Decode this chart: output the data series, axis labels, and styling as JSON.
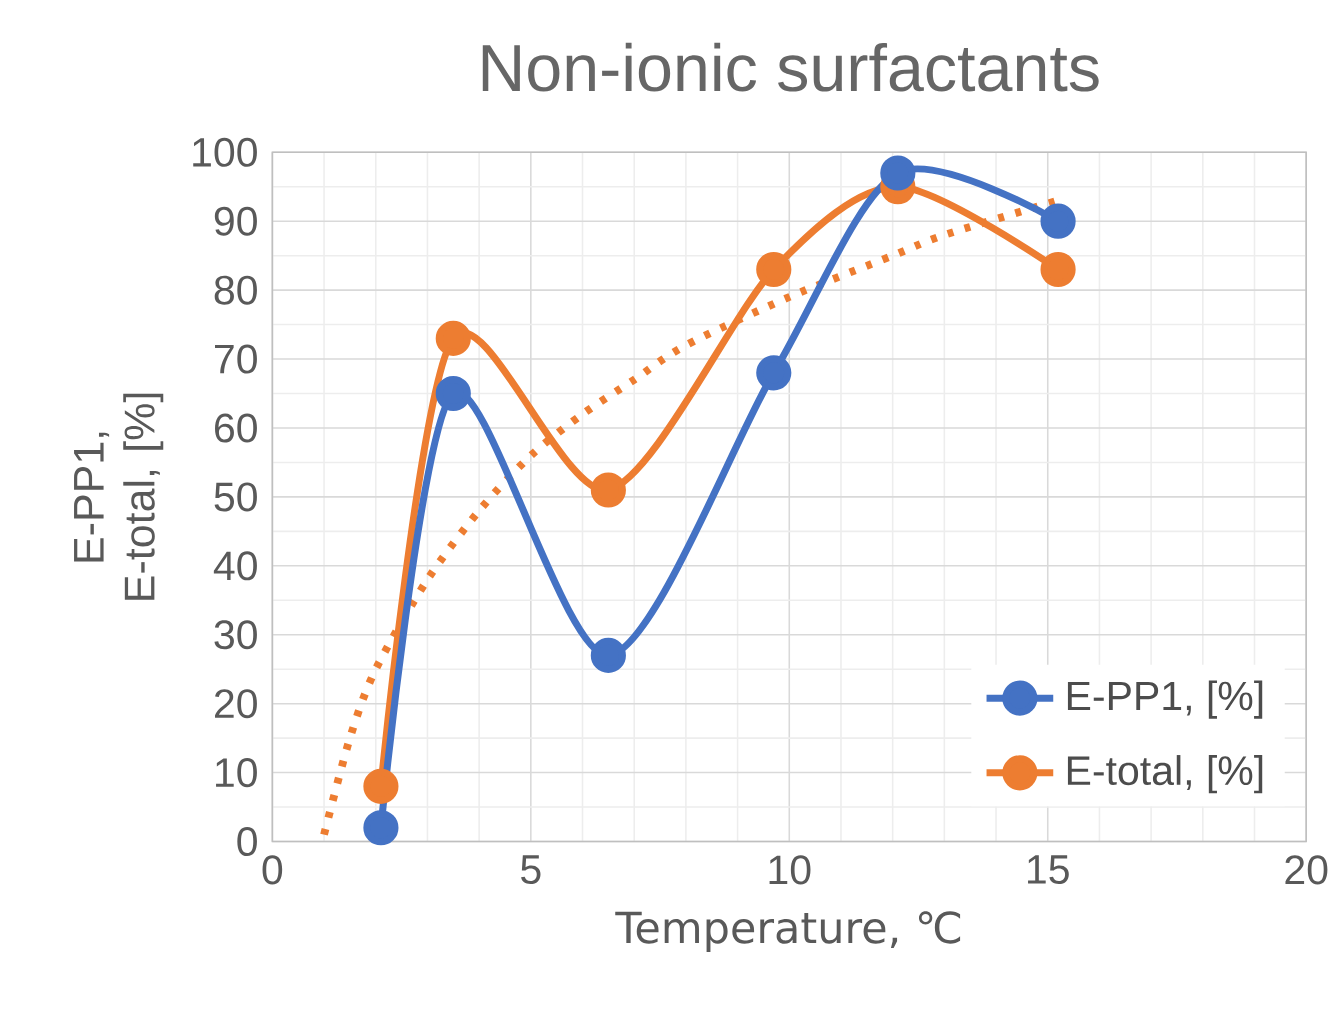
{
  "chart_data": {
    "type": "line",
    "title": "Non-ionic surfactants",
    "xlabel": "Temperature, ℃",
    "ylabel": "E-PP1, E-total, [%]",
    "xlim": [
      0,
      20
    ],
    "xticks": [
      0,
      5,
      10,
      15,
      20
    ],
    "ylim": [
      0,
      100
    ],
    "yticks": [
      0,
      10,
      20,
      30,
      40,
      50,
      60,
      70,
      80,
      90,
      100
    ],
    "grid": true,
    "legend": "bottom right",
    "marker": "circle",
    "line_style": "solid",
    "series": [
      {
        "name": "E-PP1, [%]",
        "color": "#4472c4",
        "x": [
          2.1,
          3.5,
          6.5,
          9.7,
          12.1,
          15.2
        ],
        "values": [
          2,
          65,
          27,
          68,
          97,
          90
        ]
      },
      {
        "name": "E-total, [%]",
        "color": "#ed7d31",
        "x": [
          2.1,
          3.5,
          6.5,
          9.7,
          12.1,
          15.2
        ],
        "values": [
          8,
          73,
          51,
          83,
          95,
          83
        ]
      },
      {
        "color": "#ed7d31",
        "type": "line",
        "marker": "none",
        "line_style": "dotted",
        "x": [
          1,
          1.5,
          2,
          3,
          4,
          5,
          6,
          7,
          8,
          10,
          12,
          13,
          15.2
        ],
        "values": [
          1,
          15,
          25,
          38,
          48,
          56,
          62,
          67,
          72,
          79,
          85,
          88,
          93
        ]
      }
    ]
  }
}
